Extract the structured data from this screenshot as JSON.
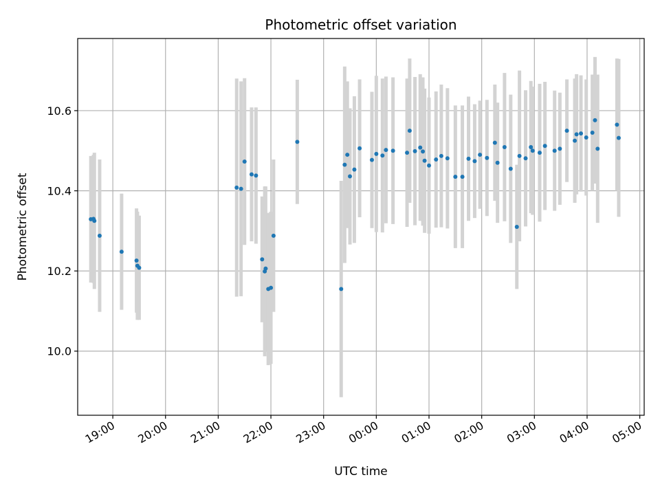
{
  "chart_data": {
    "type": "scatter",
    "title": "Photometric offset variation",
    "xlabel": "UTC time",
    "ylabel": "Photometric offset",
    "x_unit": "UTC hour (continuous, crossing midnight)",
    "xlim": [
      "18:20",
      "05:05"
    ],
    "ylim": [
      9.84,
      10.78
    ],
    "x_ticks": [
      "19:00",
      "20:00",
      "21:00",
      "22:00",
      "23:00",
      "00:00",
      "01:00",
      "02:00",
      "03:00",
      "04:00",
      "05:00"
    ],
    "y_ticks": [
      "10.0",
      "10.2",
      "10.4",
      "10.6"
    ],
    "grid": true,
    "colors": {
      "marker": "#1f77b4",
      "errorbar": "#d3d3d3",
      "grid": "#b0b0b0"
    },
    "series": [
      {
        "x": [
          "18:35",
          "18:38",
          "18:39",
          "18:45",
          "19:10",
          "19:27",
          "19:28",
          "19:30",
          "21:21",
          "21:26",
          "21:30",
          "21:38",
          "21:43",
          "21:50",
          "21:53",
          "21:54",
          "21:57",
          "22:00",
          "22:03",
          "22:30",
          "23:20",
          "23:24",
          "23:27",
          "23:30",
          "23:35",
          "23:41",
          "23:55",
          "00:00",
          "00:07",
          "00:11",
          "00:19",
          "00:35",
          "00:44",
          "00:50",
          "00:53",
          "00:55",
          "01:00",
          "01:08",
          "01:14",
          "01:21",
          "01:30",
          "01:38",
          "01:45",
          "01:52",
          "01:58",
          "02:06",
          "02:15",
          "02:18",
          "02:26",
          "02:33",
          "02:43",
          "02:50",
          "02:56",
          "03:06",
          "03:12",
          "03:23",
          "03:29",
          "03:37",
          "03:46",
          "03:48",
          "03:53",
          "03:59",
          "04:06",
          "04:09",
          "04:12",
          "04:34",
          "04:36",
          "00:38",
          "02:40",
          "02:58"
        ],
        "y": [
          10.329,
          10.33,
          10.325,
          10.288,
          10.248,
          10.226,
          10.213,
          10.208,
          10.408,
          10.405,
          10.473,
          10.441,
          10.438,
          10.229,
          10.199,
          10.206,
          10.155,
          10.158,
          10.288,
          10.522,
          10.155,
          10.465,
          10.49,
          10.436,
          10.453,
          10.506,
          10.477,
          10.492,
          10.488,
          10.502,
          10.5,
          10.495,
          10.499,
          10.508,
          10.498,
          10.475,
          10.463,
          10.478,
          10.487,
          10.481,
          10.435,
          10.435,
          10.48,
          10.474,
          10.49,
          10.482,
          10.52,
          10.47,
          10.509,
          10.455,
          10.487,
          10.481,
          10.509,
          10.495,
          10.512,
          10.5,
          10.505,
          10.55,
          10.525,
          10.541,
          10.543,
          10.533,
          10.545,
          10.576,
          10.505,
          10.565,
          10.532,
          10.55,
          10.31,
          10.5
        ],
        "yerr": [
          0.158,
          0.16,
          0.17,
          0.19,
          0.145,
          0.13,
          0.135,
          0.13,
          0.272,
          0.268,
          0.208,
          0.167,
          0.17,
          0.157,
          0.212,
          0.205,
          0.19,
          0.19,
          0.19,
          0.155,
          0.27,
          0.245,
          0.183,
          0.17,
          0.183,
          0.172,
          0.17,
          0.195,
          0.192,
          0.183,
          0.183,
          0.185,
          0.185,
          0.183,
          0.185,
          0.18,
          0.17,
          0.17,
          0.178,
          0.175,
          0.178,
          0.178,
          0.155,
          0.142,
          0.135,
          0.145,
          0.145,
          0.15,
          0.185,
          0.185,
          0.213,
          0.17,
          0.165,
          0.172,
          0.16,
          0.15,
          0.14,
          0.128,
          0.155,
          0.15,
          0.145,
          0.145,
          0.145,
          0.158,
          0.185,
          0.165,
          0.197,
          0.18,
          0.155,
          0.16
        ]
      }
    ]
  }
}
